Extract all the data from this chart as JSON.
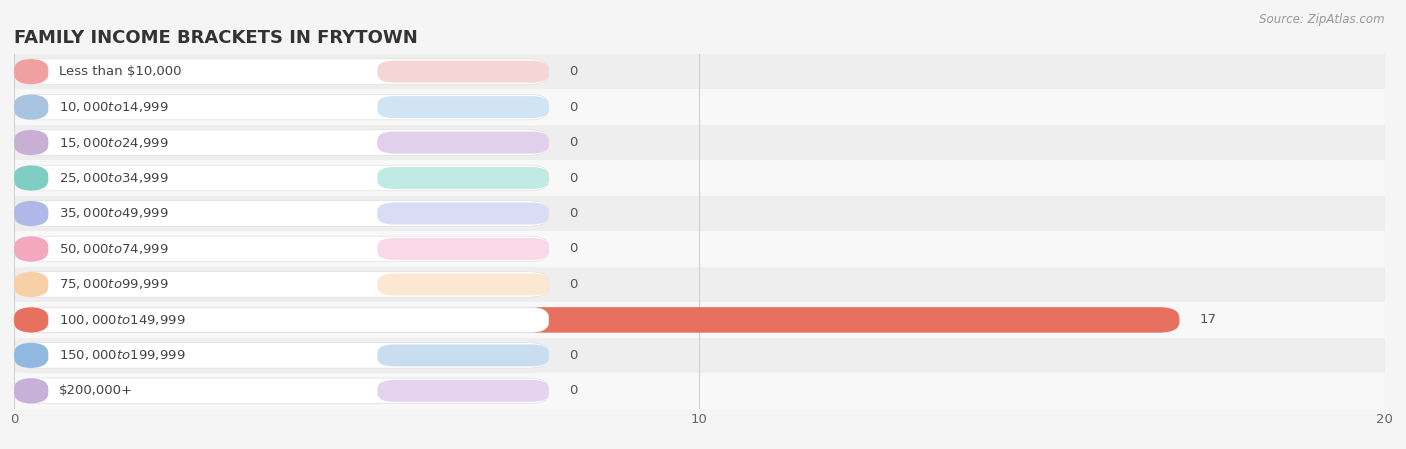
{
  "title": "FAMILY INCOME BRACKETS IN FRYTOWN",
  "source": "Source: ZipAtlas.com",
  "categories": [
    "Less than $10,000",
    "$10,000 to $14,999",
    "$15,000 to $24,999",
    "$25,000 to $34,999",
    "$35,000 to $49,999",
    "$50,000 to $74,999",
    "$75,000 to $99,999",
    "$100,000 to $149,999",
    "$150,000 to $199,999",
    "$200,000+"
  ],
  "values": [
    0,
    0,
    0,
    0,
    0,
    0,
    0,
    17,
    0,
    0
  ],
  "bar_colors": [
    "#f0a0a0",
    "#a8c4e0",
    "#c9afd4",
    "#7ecec4",
    "#b0b8e8",
    "#f4a8c0",
    "#f8d0a8",
    "#e87060",
    "#90b8e0",
    "#c8b0d8"
  ],
  "pill_bg_colors": [
    "#f5d5d5",
    "#d0e4f4",
    "#e0d0ec",
    "#c0eae4",
    "#d8dcf4",
    "#fad8e8",
    "#fce8d0",
    "#f5c0b8",
    "#c8ddf0",
    "#e4d4f0"
  ],
  "background_color": "#f5f5f5",
  "row_colors": [
    "#eeeeee",
    "#f8f8f8"
  ],
  "xlim": [
    0,
    20
  ],
  "xticks": [
    0,
    10,
    20
  ],
  "title_fontsize": 13,
  "label_fontsize": 9.5,
  "value_fontsize": 9.5,
  "tick_fontsize": 9.5,
  "source_fontsize": 8.5
}
